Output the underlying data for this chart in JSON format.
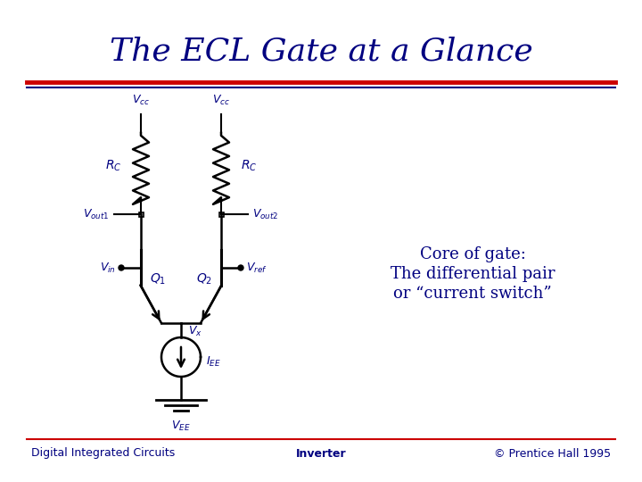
{
  "title": "The ECL Gate at a Glance",
  "title_color": "#000080",
  "title_fontsize": 26,
  "bg_color": "#ffffff",
  "sep_red": "#cc0000",
  "sep_blue": "#000080",
  "footer_left": "Digital Integrated Circuits",
  "footer_center": "Inverter",
  "footer_right": "© Prentice Hall 1995",
  "footer_color": "#000080",
  "footer_fontsize": 9,
  "core_text_line1": "Core of gate:",
  "core_text_line2": "The differential pair",
  "core_text_line3": "or “current switch”",
  "core_text_color": "#000080",
  "core_text_fontsize": 13,
  "circuit_color": "#000000",
  "label_color": "#000080",
  "label_fontsize": 9
}
